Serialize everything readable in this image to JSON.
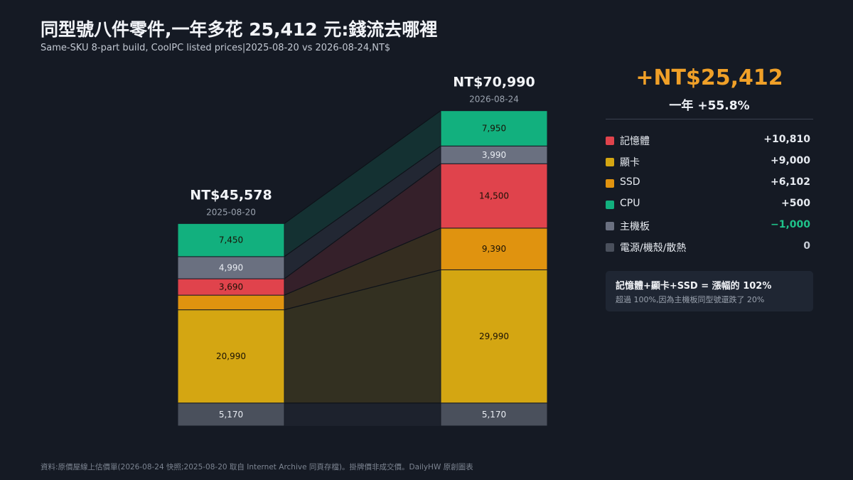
{
  "header": {
    "title": "同型號八件零件,一年多花 25,412 元:錢流去哪裡",
    "subtitle": "Same-SKU 8-part build, CoolPC listed prices|2025-08-20 vs 2026-08-24,NT$"
  },
  "colors": {
    "memory": "#e0434c",
    "gpu": "#d4a612",
    "ssd": "#e0930f",
    "cpu": "#12b07e",
    "motherboard": "#6a7080",
    "power_case_cooling": "#4a505c",
    "accent": "#f0a028",
    "positive_green": "#1fc38a",
    "background": "#151a24"
  },
  "chart_data": {
    "type": "bar",
    "stacked": true,
    "categories": [
      "2025-08-20",
      "2026-08-24"
    ],
    "totals": [
      "NT$45,578",
      "NT$70,990"
    ],
    "series": [
      {
        "key": "power_case_cooling",
        "values": [
          5170,
          5170
        ],
        "labels": [
          "5,170",
          "5,170"
        ],
        "color": "#4a505c"
      },
      {
        "key": "gpu",
        "values": [
          20990,
          29990
        ],
        "labels": [
          "20,990",
          "29,990"
        ],
        "color": "#d4a612"
      },
      {
        "key": "ssd",
        "values": [
          3288,
          9390
        ],
        "labels": [
          "",
          "9,390"
        ],
        "color": "#e0930f"
      },
      {
        "key": "memory",
        "values": [
          3690,
          14500
        ],
        "labels": [
          "3,690",
          "14,500"
        ],
        "color": "#e0434c"
      },
      {
        "key": "motherboard",
        "values": [
          4990,
          3990
        ],
        "labels": [
          "4,990",
          "3,990"
        ],
        "color": "#6a7080"
      },
      {
        "key": "cpu",
        "values": [
          7450,
          7950
        ],
        "labels": [
          "7,450",
          "7,950"
        ],
        "color": "#12b07e"
      }
    ]
  },
  "summary": {
    "delta": "+NT$25,412",
    "delta_sub": "一年 +55.8%"
  },
  "legend": [
    {
      "name": "記憶體",
      "value": "+10,810",
      "color": "#e0434c",
      "value_color": "#e6eaf0"
    },
    {
      "name": "顯卡",
      "value": "+9,000",
      "color": "#d4a612",
      "value_color": "#e6eaf0"
    },
    {
      "name": "SSD",
      "value": "+6,102",
      "color": "#e0930f",
      "value_color": "#e6eaf0"
    },
    {
      "name": "CPU",
      "value": "+500",
      "color": "#12b07e",
      "value_color": "#e6eaf0"
    },
    {
      "name": "主機板",
      "value": "−1,000",
      "color": "#6a7080",
      "value_color": "#1fc38a"
    },
    {
      "name": "電源/機殼/散熱",
      "value": "0",
      "color": "#4a505c",
      "value_color": "#c6ccd5"
    }
  ],
  "note": {
    "headline": "記憶體+顯卡+SSD = 漲幅的 102%",
    "detail": "超過 100%,因為主機板同型號還跌了 20%"
  },
  "footer": "資料:原價屋線上估價單(2026-08-24 快照;2025-08-20 取自 Internet Archive 同頁存檔)。掛牌價非成交價。DailyHW 原創圖表"
}
